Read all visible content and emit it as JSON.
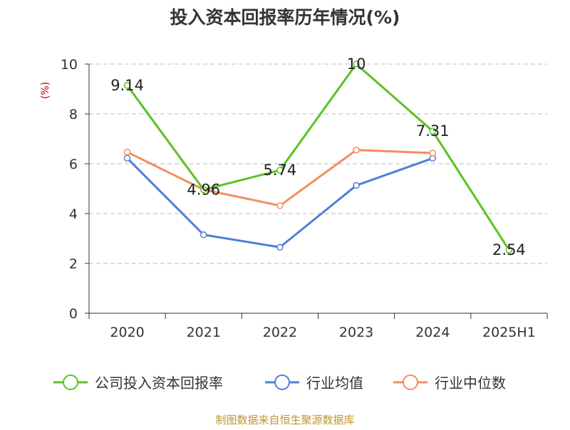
{
  "chart_data": {
    "type": "line",
    "title": "投入资本回报率历年情况(%)",
    "ylabel": "(%)",
    "xlabel": "",
    "categories": [
      "2020",
      "2021",
      "2022",
      "2023",
      "2024",
      "2025H1"
    ],
    "ylim": [
      0,
      10
    ],
    "yticks": [
      0,
      2,
      4,
      6,
      8,
      10
    ],
    "grid": true,
    "legend_position": "bottom",
    "series": [
      {
        "name": "公司投入资本回报率",
        "color": "#5ac325",
        "values": [
          9.14,
          4.96,
          5.74,
          10,
          7.31,
          2.54
        ],
        "show_labels": true
      },
      {
        "name": "行业均值",
        "color": "#4f7fd8",
        "values": [
          6.22,
          3.15,
          2.65,
          5.13,
          6.22,
          null
        ],
        "show_labels": false
      },
      {
        "name": "行业中位数",
        "color": "#f28f5c",
        "values": [
          6.47,
          4.96,
          4.32,
          6.55,
          6.43,
          null
        ],
        "show_labels": false
      }
    ],
    "data_labels": [
      "9.14",
      "4.96",
      "5.74",
      "10",
      "7.31",
      "2.54"
    ]
  },
  "source": "制图数据来自恒生聚源数据库",
  "colors": {
    "title": "#333333",
    "axis": "#333333",
    "grid": "#bbbbbb",
    "ylabel": "#cc0000",
    "source": "#c0952c"
  }
}
